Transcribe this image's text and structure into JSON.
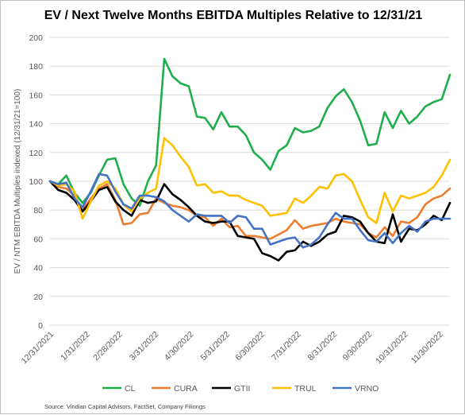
{
  "chart_data": {
    "type": "line",
    "title": "EV / Next Twelve Months EBITDA Multiples Relative to 12/31/21",
    "ylabel": "EV / NTM EBITDA Multiples indexed (12/31/21=100)",
    "xlabel": "",
    "ylim": [
      0,
      200
    ],
    "yticks": [
      0,
      20,
      40,
      60,
      80,
      100,
      120,
      140,
      160,
      180,
      200
    ],
    "xlim": [
      "2021-12-31",
      "2022-12-09"
    ],
    "xtick_labels": [
      "12/31/2021",
      "1/31/2022",
      "2/28/2022",
      "3/31/2022",
      "4/30/2022",
      "5/31/2022",
      "6/30/2022",
      "7/31/2022",
      "8/31/2022",
      "9/30/2022",
      "10/31/2022",
      "11/30/2022"
    ],
    "xtick_dates": [
      "2021-12-31",
      "2022-01-31",
      "2022-02-28",
      "2022-03-31",
      "2022-04-30",
      "2022-05-31",
      "2022-06-30",
      "2022-07-31",
      "2022-08-31",
      "2022-09-30",
      "2022-10-31",
      "2022-11-30"
    ],
    "grid": true,
    "legend_position": "bottom",
    "x": [
      "2021-12-31",
      "2022-01-07",
      "2022-01-14",
      "2022-01-21",
      "2022-01-28",
      "2022-02-04",
      "2022-02-11",
      "2022-02-18",
      "2022-02-25",
      "2022-03-04",
      "2022-03-11",
      "2022-03-18",
      "2022-03-25",
      "2022-04-01",
      "2022-04-08",
      "2022-04-15",
      "2022-04-22",
      "2022-04-29",
      "2022-05-06",
      "2022-05-13",
      "2022-05-20",
      "2022-05-27",
      "2022-06-03",
      "2022-06-10",
      "2022-06-17",
      "2022-06-24",
      "2022-07-01",
      "2022-07-08",
      "2022-07-15",
      "2022-07-22",
      "2022-07-29",
      "2022-08-05",
      "2022-08-12",
      "2022-08-19",
      "2022-08-26",
      "2022-09-02",
      "2022-09-09",
      "2022-09-16",
      "2022-09-23",
      "2022-09-30",
      "2022-10-07",
      "2022-10-14",
      "2022-10-21",
      "2022-10-28",
      "2022-11-04",
      "2022-11-11",
      "2022-11-18",
      "2022-11-25",
      "2022-12-02",
      "2022-12-09"
    ],
    "series": [
      {
        "name": "CL",
        "color": "#1fae4c",
        "values": [
          100,
          98,
          104,
          92,
          85,
          92,
          104,
          115,
          116,
          98,
          88,
          83,
          100,
          111,
          185,
          173,
          168,
          166,
          145,
          144,
          136,
          148,
          138,
          138,
          132,
          120,
          115,
          108,
          121,
          125,
          137,
          134,
          135,
          138,
          151,
          159,
          164,
          155,
          142,
          125,
          126,
          148,
          137,
          149,
          140,
          145,
          152,
          155,
          157,
          174
        ]
      },
      {
        "name": "CURA",
        "color": "#ed7d31",
        "values": [
          100,
          96,
          95,
          90,
          80,
          88,
          95,
          98,
          87,
          70,
          71,
          77,
          78,
          88,
          85,
          83,
          82,
          80,
          76,
          75,
          69,
          74,
          68,
          69,
          62,
          62,
          61,
          60,
          63,
          66,
          73,
          67,
          69,
          70,
          71,
          74,
          72,
          71,
          70,
          64,
          61,
          68,
          62,
          72,
          71,
          75,
          84,
          88,
          90,
          95
        ]
      },
      {
        "name": "GTII",
        "color": "#000000",
        "values": [
          100,
          94,
          92,
          87,
          79,
          86,
          94,
          96,
          86,
          80,
          76,
          87,
          85,
          86,
          98,
          91,
          87,
          82,
          76,
          72,
          71,
          72,
          72,
          62,
          61,
          60,
          50,
          48,
          45,
          51,
          52,
          58,
          55,
          58,
          63,
          65,
          76,
          75,
          72,
          64,
          58,
          57,
          77,
          58,
          67,
          66,
          70,
          76,
          73,
          85
        ]
      },
      {
        "name": "TRUL",
        "color": "#ffc000",
        "values": [
          100,
          97,
          98,
          93,
          74,
          86,
          97,
          100,
          95,
          84,
          79,
          88,
          92,
          95,
          130,
          125,
          117,
          110,
          97,
          98,
          92,
          93,
          90,
          90,
          87,
          85,
          83,
          76,
          77,
          78,
          88,
          85,
          90,
          96,
          95,
          104,
          105,
          100,
          87,
          75,
          71,
          92,
          79,
          90,
          88,
          90,
          92,
          96,
          104,
          115
        ]
      },
      {
        "name": "VRNO",
        "color": "#4472c4",
        "values": [
          100,
          98,
          99,
          88,
          82,
          93,
          105,
          104,
          93,
          84,
          81,
          90,
          90,
          89,
          86,
          80,
          76,
          72,
          77,
          76,
          76,
          76,
          71,
          76,
          75,
          67,
          67,
          56,
          58,
          60,
          61,
          54,
          56,
          61,
          70,
          78,
          74,
          74,
          66,
          59,
          58,
          64,
          57,
          64,
          69,
          65,
          72,
          74,
          74,
          74
        ]
      }
    ],
    "source": "Source: Viridian Capital Advisors, FactSet, Company Filiongs"
  }
}
